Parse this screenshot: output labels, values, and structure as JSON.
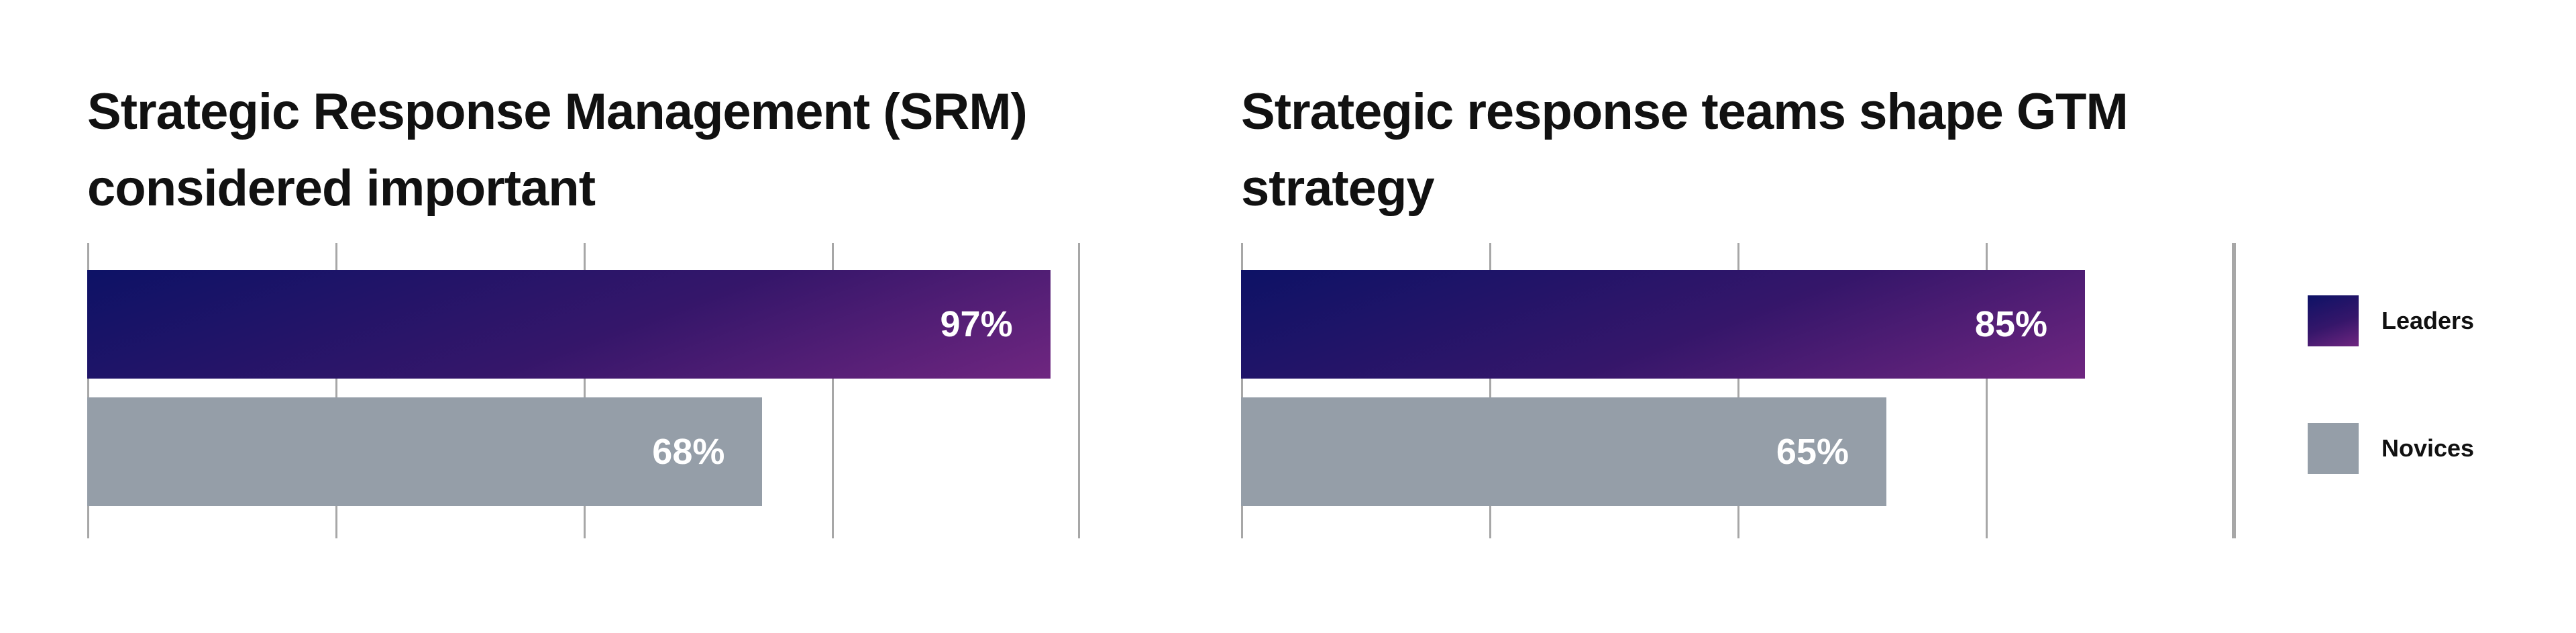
{
  "colors": {
    "leaders_start": "#0d1266",
    "leaders_end": "#6f2680",
    "novices": "#959ea8",
    "grid": "#a7a7a7"
  },
  "legend": {
    "items": [
      {
        "label": "Leaders",
        "color": "#2a145f"
      },
      {
        "label": "Novices",
        "color": "#959ea8"
      }
    ]
  },
  "chart_data": [
    {
      "type": "bar",
      "orientation": "horizontal",
      "title": "Strategic Response Management (SRM) considered important",
      "series": [
        {
          "name": "Leaders",
          "value": 97,
          "label": "97%"
        },
        {
          "name": "Novices",
          "value": 68,
          "label": "68%"
        }
      ],
      "xlim": [
        0,
        100
      ],
      "grid": true
    },
    {
      "type": "bar",
      "orientation": "horizontal",
      "title": "Strategic response teams shape GTM strategy",
      "series": [
        {
          "name": "Leaders",
          "value": 85,
          "label": "85%"
        },
        {
          "name": "Novices",
          "value": 65,
          "label": "65%"
        }
      ],
      "xlim": [
        0,
        100
      ],
      "grid": true
    }
  ]
}
